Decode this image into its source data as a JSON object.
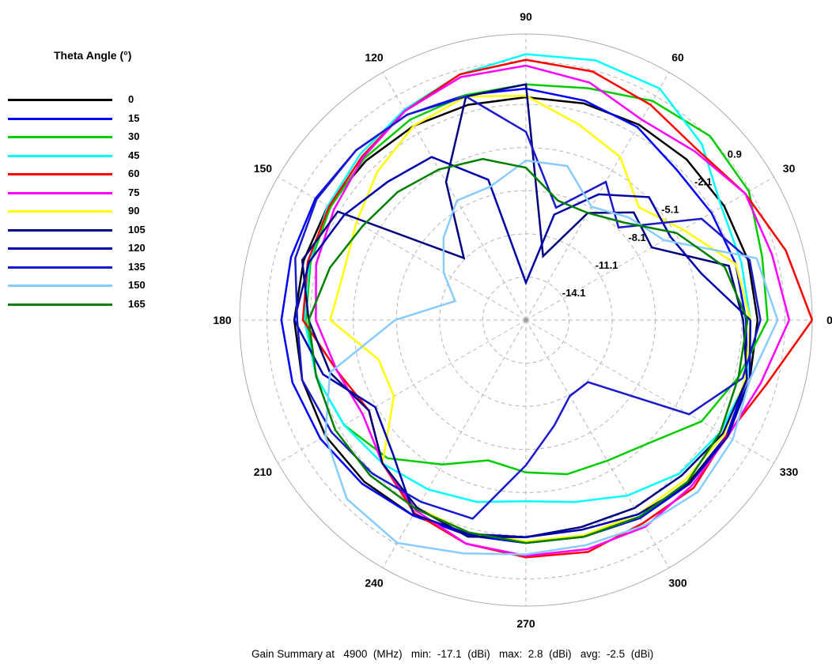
{
  "chart_data": {
    "type": "polar-line",
    "legend": {
      "title": "Theta Angle (°)",
      "placement": "top-left"
    },
    "angle_ticks": [
      "0",
      "30",
      "60",
      "90",
      "120",
      "150",
      "180",
      "210",
      "240",
      "270",
      "300",
      "330"
    ],
    "radial_ticks": [
      "-14.1",
      "-11.1",
      "-8.1",
      "-5.1",
      "-2.1",
      "0.9"
    ],
    "radial_tick_values": [
      -14.1,
      -11.1,
      -8.1,
      -5.1,
      -2.1,
      0.9
    ],
    "r_range": [
      -17.1,
      2.8
    ],
    "angles_deg": [
      0,
      15,
      30,
      45,
      60,
      75,
      90,
      105,
      120,
      135,
      150,
      165,
      180,
      195,
      210,
      225,
      240,
      255,
      270,
      285,
      300,
      315,
      330,
      345
    ],
    "series": [
      {
        "name": "0",
        "color": "#000000",
        "values": [
          -1.0,
          -1.1,
          -1.2,
          -1.3,
          -1.4,
          -1.5,
          -1.6,
          -1.6,
          -1.5,
          -1.4,
          -1.2,
          -1.1,
          -1.0,
          -1.0,
          -1.0,
          -1.2,
          -1.4,
          -1.6,
          -1.6,
          -1.5,
          -1.3,
          -1.1,
          -1.0,
          -1.0
        ]
      },
      {
        "name": "15",
        "color": "#0000ff",
        "values": [
          -1.8,
          -2.0,
          -2.2,
          -2.3,
          -1.6,
          -1.3,
          -1.0,
          -0.9,
          -0.6,
          -0.4,
          -0.2,
          -0.2,
          -0.1,
          -0.3,
          -0.6,
          -1.0,
          -1.4,
          -1.6,
          -1.6,
          -1.5,
          -1.2,
          -1.0,
          -1.0,
          -1.2
        ]
      },
      {
        "name": "30",
        "color": "#00cc00",
        "values": [
          -0.3,
          -0.1,
          0.8,
          1.0,
          0.5,
          -0.4,
          -0.7,
          -0.9,
          -1.0,
          -1.2,
          -1.4,
          -1.6,
          -1.8,
          -2.0,
          -2.5,
          -3.5,
          -5.5,
          -7.0,
          -6.5,
          -6.0,
          -5.8,
          -5.0,
          -3.0,
          -1.8
        ]
      },
      {
        "name": "45",
        "color": "#00ffff",
        "values": [
          -1.5,
          -1.6,
          -1.4,
          0.2,
          1.5,
          1.6,
          1.4,
          0.6,
          -0.2,
          -0.8,
          -1.2,
          -1.5,
          -1.7,
          -2.0,
          -2.5,
          -3.0,
          -3.5,
          -4.0,
          -4.5,
          -4.0,
          -3.0,
          -2.0,
          -1.5,
          -1.2
        ]
      },
      {
        "name": "60",
        "color": "#ff0000",
        "values": [
          2.8,
          1.6,
          0.5,
          -0.3,
          0.2,
          0.8,
          1.0,
          0.6,
          -0.3,
          -1.0,
          -1.3,
          -1.4,
          -1.6,
          -3.5,
          -4.5,
          -3.0,
          -1.6,
          -1.0,
          -0.6,
          -0.4,
          -0.8,
          -0.6,
          -1.0,
          0.2
        ]
      },
      {
        "name": "75",
        "color": "#ff00ff",
        "values": [
          1.2,
          0.6,
          0.5,
          -0.5,
          -1.0,
          0.0,
          0.6,
          0.4,
          -0.3,
          -1.1,
          -1.7,
          -2.0,
          -2.5,
          -3.5,
          -4.0,
          -3.0,
          -1.8,
          -1.0,
          -0.7,
          -0.6,
          -0.5,
          -0.8,
          -0.9,
          -0.2
        ]
      },
      {
        "name": "90",
        "color": "#ffff00",
        "values": [
          -1.5,
          -2.0,
          -4.5,
          -6.0,
          -4.0,
          -3.0,
          -1.5,
          -1.0,
          -1.5,
          -2.5,
          -3.5,
          -4.0,
          -3.5,
          -6.5,
          -6.5,
          -3.0,
          -2.0,
          -1.8,
          -1.7,
          -1.6,
          -1.5,
          -1.4,
          -1.2,
          -1.3
        ]
      },
      {
        "name": "105",
        "color": "#000080",
        "values": [
          -2.0,
          -2.5,
          -7.0,
          -6.5,
          -8.5,
          -12.5,
          -0.7,
          -1.0,
          -6.0,
          -11.0,
          -2.0,
          -1.0,
          -2.0,
          -3.0,
          -4.5,
          -3.0,
          -2.0,
          -1.5,
          -2.0,
          -2.2,
          -2.0,
          -1.8,
          -1.3,
          -1.2
        ]
      },
      {
        "name": "120",
        "color": "#0000aa",
        "values": [
          -1.5,
          -4.5,
          -5.5,
          -5.0,
          -7.0,
          -9.5,
          -14.5,
          -7.0,
          -4.0,
          -3.5,
          -2.5,
          -1.5,
          -1.0,
          -2.5,
          -5.0,
          -4.0,
          -1.5,
          -1.7,
          -2.0,
          -2.0,
          -1.5,
          -1.0,
          -0.9,
          -1.0
        ]
      },
      {
        "name": "135",
        "color": "#1a1acc",
        "values": [
          -0.8,
          -1.0,
          -3.0,
          -8.0,
          -6.0,
          -9.0,
          -4.0,
          -1.0,
          -0.6,
          -0.4,
          -0.3,
          -0.5,
          -1.2,
          -1.0,
          -1.5,
          -2.0,
          -2.5,
          -2.8,
          -7.0,
          -9.5,
          -11.0,
          -11.0,
          -4.0,
          -1.5
        ]
      },
      {
        "name": "150",
        "color": "#88ccff",
        "values": [
          0.4,
          -0.5,
          -6.0,
          -7.0,
          -8.0,
          -6.0,
          -6.0,
          -7.5,
          -7.5,
          -9.0,
          -10.5,
          -12.0,
          -8.0,
          -3.0,
          -1.0,
          0.5,
          0.8,
          -0.3,
          -0.8,
          -0.9,
          -0.6,
          -0.2,
          -0.5,
          -1.0
        ]
      },
      {
        "name": "165",
        "color": "#008000",
        "values": [
          -1.7,
          -2.8,
          -5.0,
          -7.5,
          -8.5,
          -8.5,
          -6.5,
          -5.5,
          -5.0,
          -4.5,
          -4.0,
          -3.0,
          -2.0,
          -2.0,
          -1.8,
          -1.8,
          -1.9,
          -1.8,
          -1.6,
          -1.5,
          -1.3,
          -1.2,
          -1.5,
          -1.8
        ]
      }
    ]
  },
  "summary": {
    "prefix": "Gain Summary at",
    "freq": "4900",
    "freq_unit": "(MHz)",
    "min_label": "min:",
    "min": "-17.1",
    "min_unit": "(dBi)",
    "max_label": "max:",
    "max": "2.8",
    "max_unit": "(dBi)",
    "avg_label": "avg:",
    "avg": "-2.5",
    "avg_unit": "(dBi)"
  }
}
